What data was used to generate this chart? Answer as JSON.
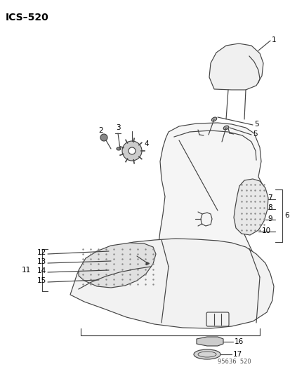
{
  "title": "ICS–520",
  "watermark": "95636  520",
  "bg_color": "#ffffff",
  "title_fontsize": 10,
  "gray": "#444444",
  "lw": 0.85
}
